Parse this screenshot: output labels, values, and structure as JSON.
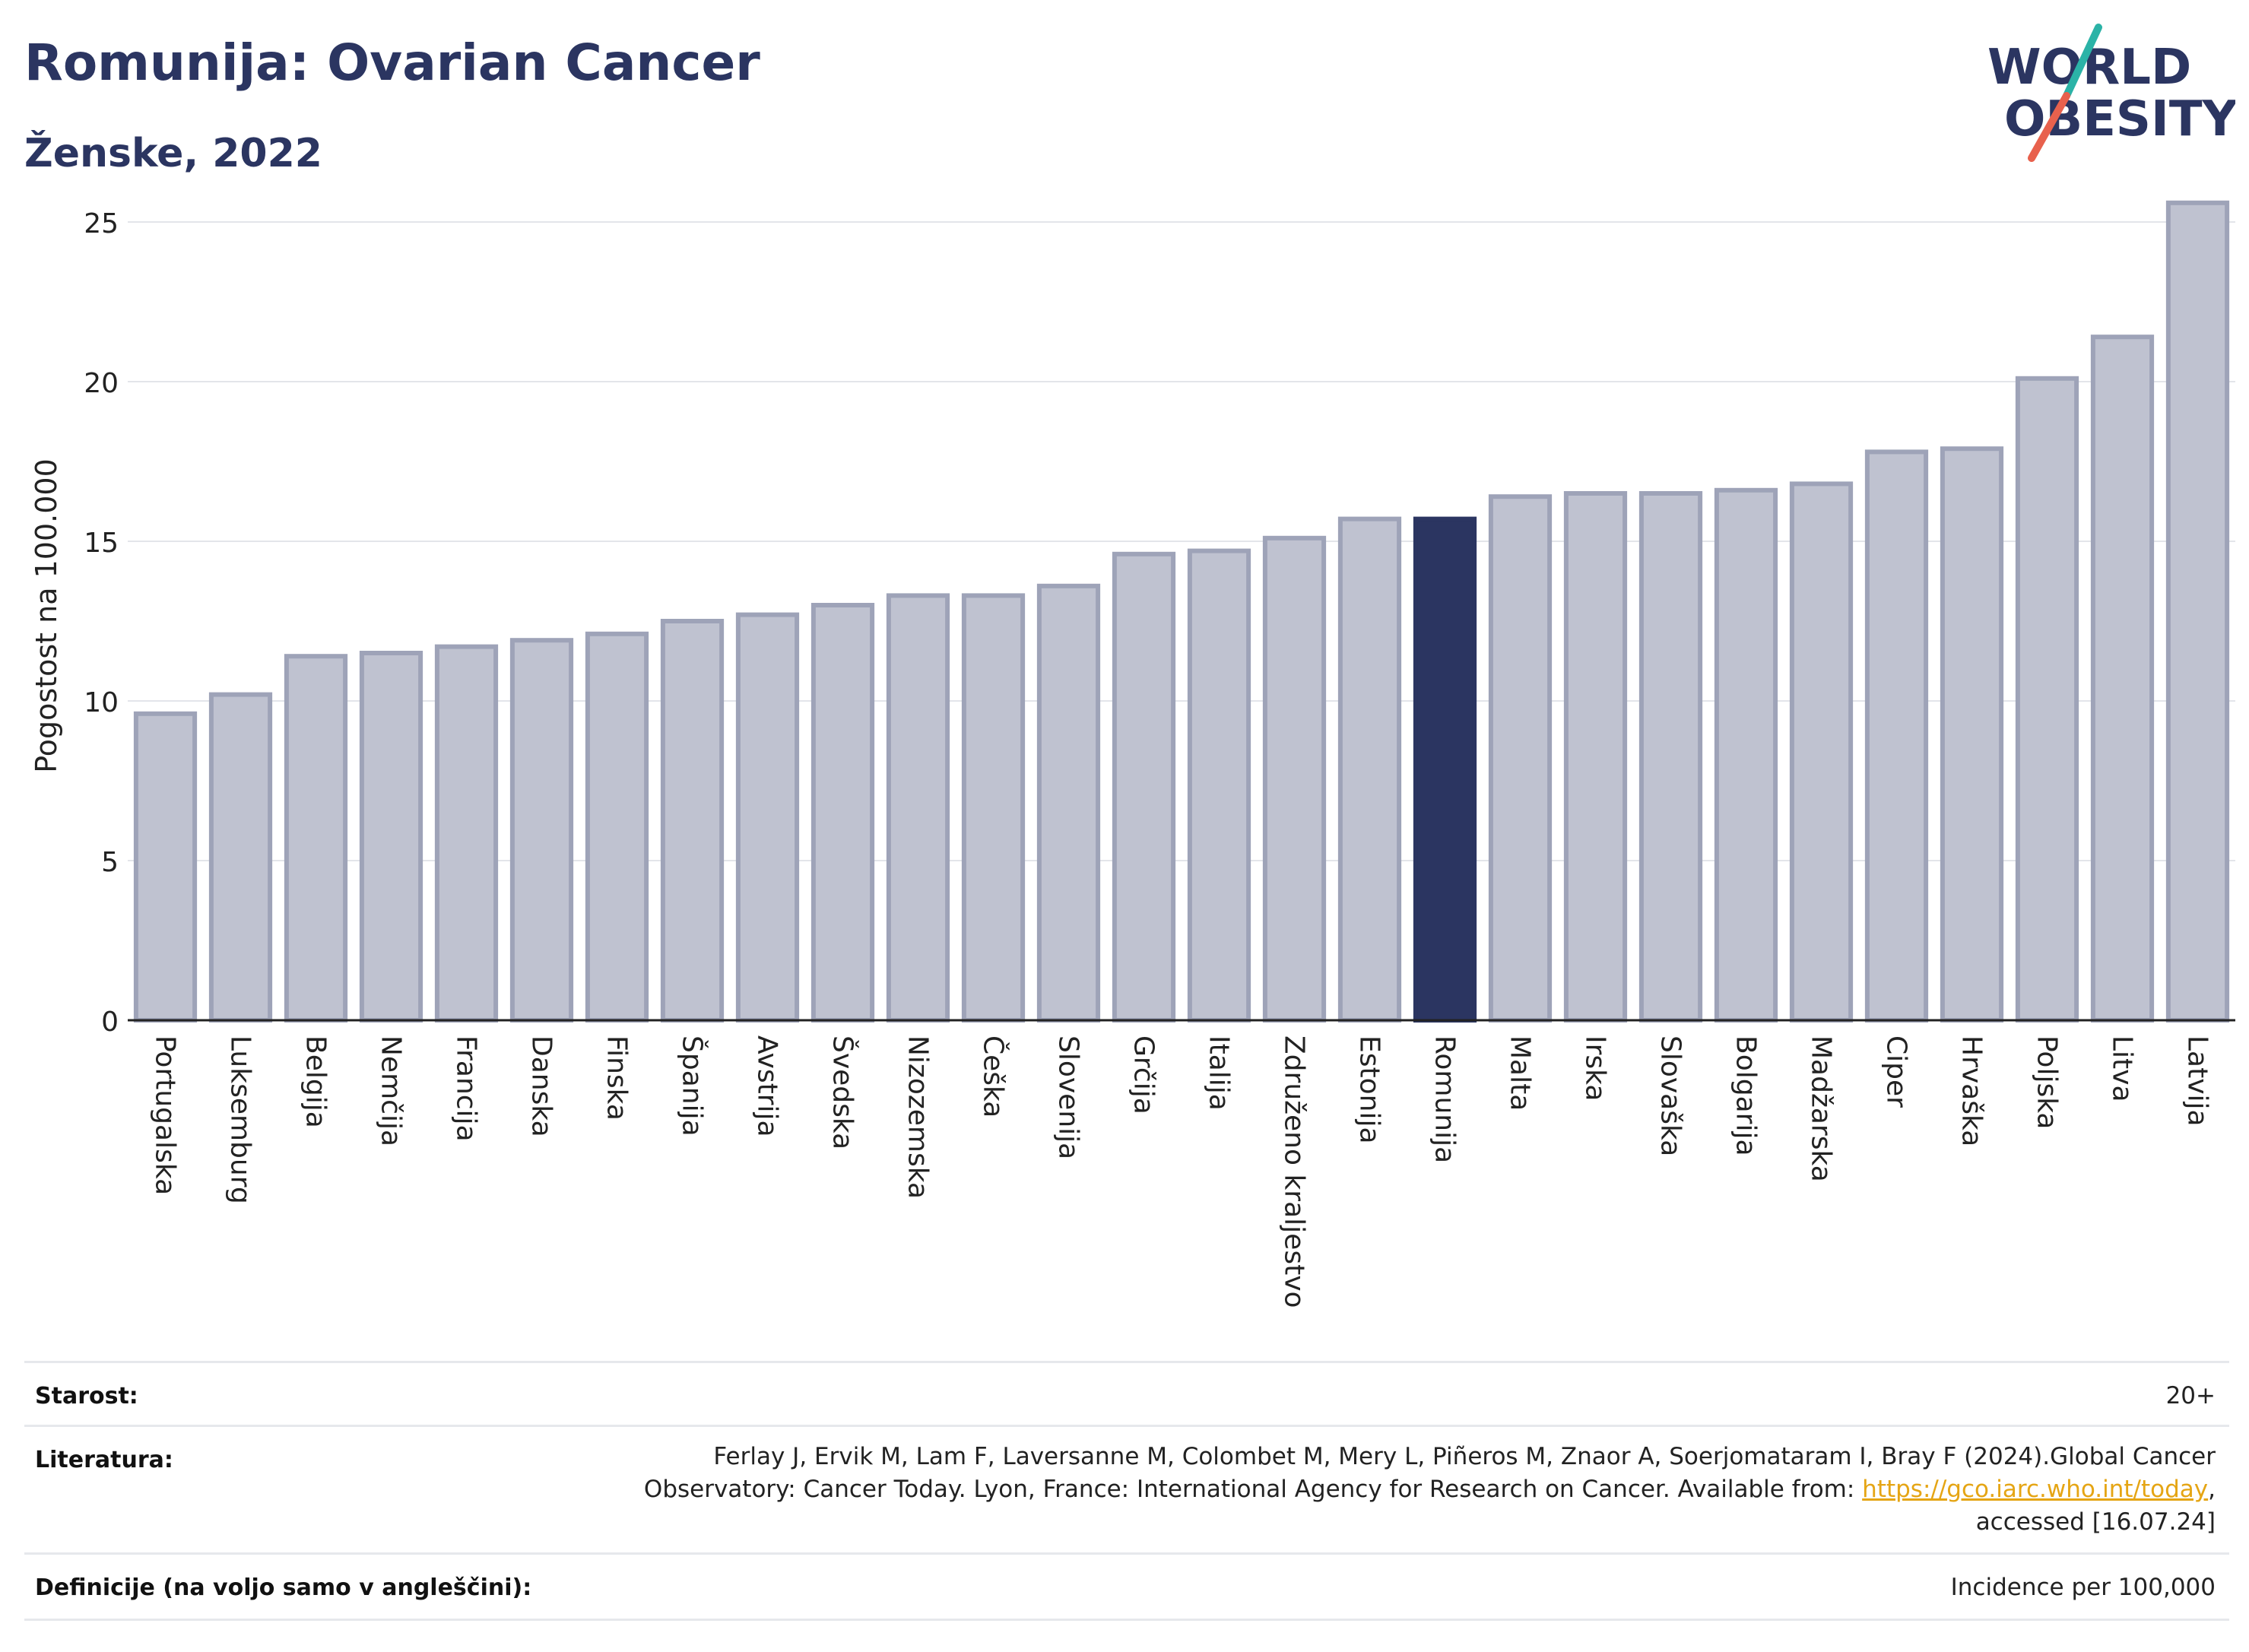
{
  "header": {
    "title": "Romunija: Ovarian Cancer",
    "subtitle": "Ženske, 2022"
  },
  "logo": {
    "line1": "WORLD",
    "line2": "OBESITY",
    "colors": {
      "text": "#2b3561",
      "slash_top": "#2bb3a7",
      "slash_bottom": "#e8614d"
    }
  },
  "chart_data": {
    "type": "bar",
    "title": "Romunija: Ovarian Cancer",
    "subtitle": "Ženske, 2022",
    "xlabel": "",
    "ylabel": "Pogostost na 100.000",
    "ylim": [
      0,
      26
    ],
    "yticks": [
      0,
      5,
      10,
      15,
      20,
      25
    ],
    "grid": true,
    "highlight": "Romunija",
    "colors": {
      "bar": "#bfc2d0",
      "bar_border": "#9ea3b8",
      "highlight": "#2b3561",
      "grid": "#e3e5ea",
      "axis": "#222222"
    },
    "categories": [
      "Portugalska",
      "Luksemburg",
      "Belgija",
      "Nemčija",
      "Francija",
      "Danska",
      "Finska",
      "Španija",
      "Avstrija",
      "Švedska",
      "Nizozemska",
      "Češka",
      "Slovenija",
      "Grčija",
      "Italija",
      "Združeno kraljestvo",
      "Estonija",
      "Romunija",
      "Malta",
      "Irska",
      "Slovaška",
      "Bolgarija",
      "Madžarska",
      "Ciper",
      "Hrvaška",
      "Poljska",
      "Litva",
      "Latvija"
    ],
    "values": [
      9.6,
      10.2,
      11.4,
      11.5,
      11.7,
      11.9,
      12.1,
      12.5,
      12.7,
      13.0,
      13.3,
      13.3,
      13.6,
      14.6,
      14.7,
      15.1,
      15.7,
      15.7,
      16.4,
      16.5,
      16.5,
      16.6,
      16.8,
      17.8,
      17.9,
      20.1,
      21.4,
      25.6
    ]
  },
  "footer": {
    "age_label": "Starost:",
    "age_value": "20+",
    "ref_label": "Literatura:",
    "ref_text_1": "Ferlay J, Ervik M, Lam F, Laversanne M, Colombet M, Mery L, Piñeros M, Znaor A, Soerjomataram I, Bray F (2024).Global Cancer",
    "ref_text_2": "Observatory: Cancer Today. Lyon, France: International Agency for Research on Cancer. Available from: ",
    "ref_link": "https://gco.iarc.who.int/today",
    "ref_text_3": ",",
    "ref_text_4": "accessed [16.07.24]",
    "def_label": "Definicije (na voljo samo v angleščini):",
    "def_value": "Incidence per 100,000"
  }
}
